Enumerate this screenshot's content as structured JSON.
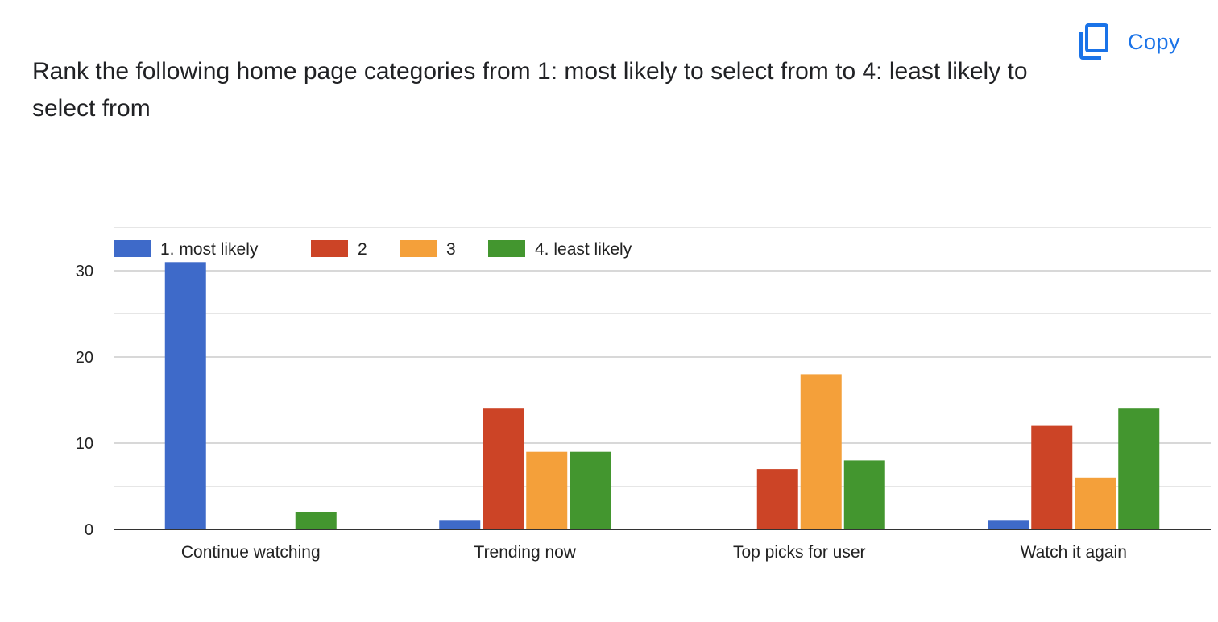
{
  "question": {
    "title": "Rank the following home page categories from 1: most likely to select from to 4: least likely to select from"
  },
  "toolbar": {
    "copy_label": "Copy",
    "copy_icon": "copy-icon"
  },
  "colors": {
    "accent": "#1a73e8",
    "series": [
      "#3e6ac9",
      "#cc4426",
      "#f4a03a",
      "#43962f"
    ],
    "grid_major": "#cccccc",
    "grid_minor": "#e6e6e6",
    "axis": "#333333",
    "text": "#222222"
  },
  "chart_data": {
    "type": "bar",
    "categories": [
      "Continue watching",
      "Trending now",
      "Top picks for user",
      "Watch it again"
    ],
    "series": [
      {
        "name": "1. most likely",
        "values": [
          31,
          1,
          0,
          1
        ]
      },
      {
        "name": "2",
        "values": [
          0,
          14,
          7,
          12
        ]
      },
      {
        "name": "3",
        "values": [
          0,
          9,
          18,
          6
        ]
      },
      {
        "name": "4. least likely",
        "values": [
          2,
          9,
          8,
          14
        ]
      }
    ],
    "yticks": [
      0,
      10,
      20,
      30
    ],
    "ylim": [
      0,
      35
    ],
    "grid": true,
    "legend": "top-left"
  }
}
